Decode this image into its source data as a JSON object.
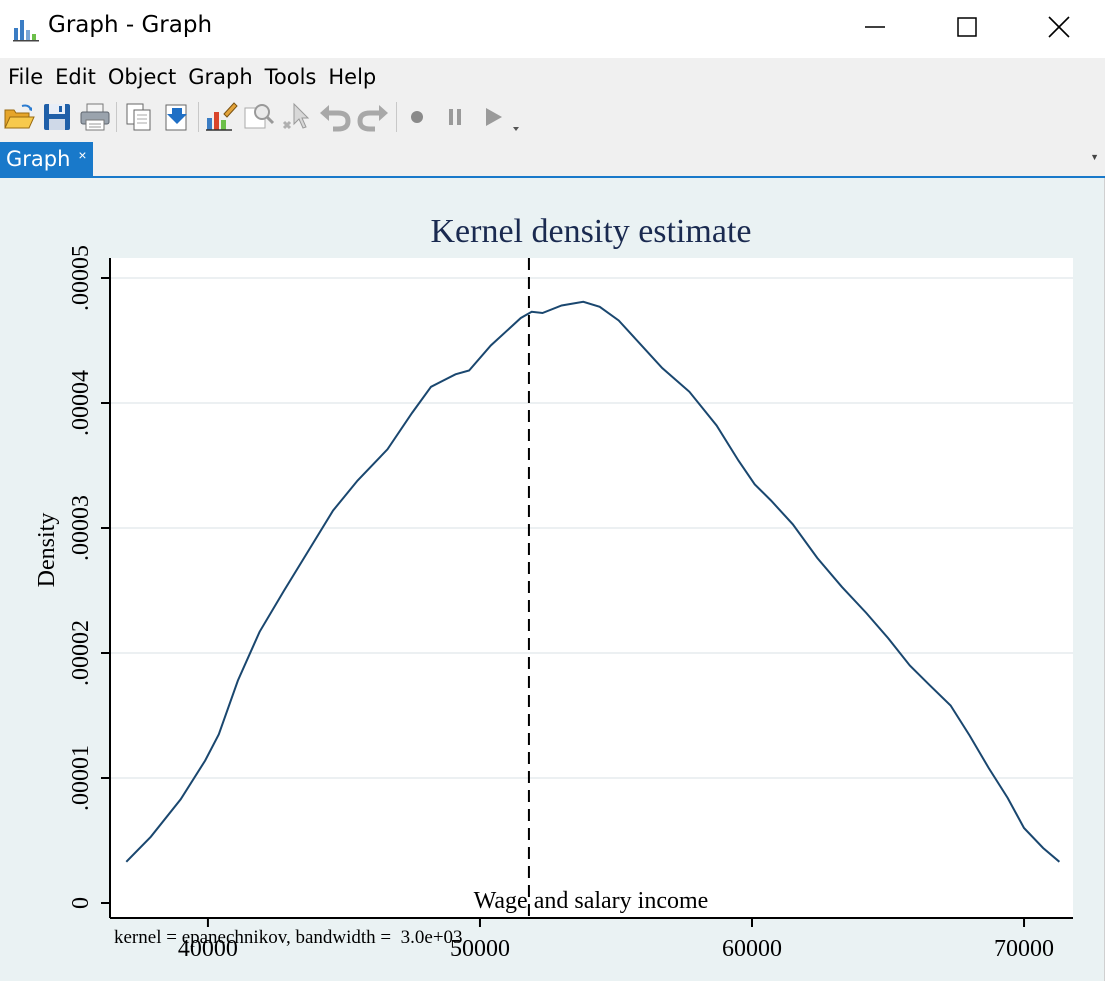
{
  "window": {
    "title": "Graph - Graph",
    "minimize_icon": "minimize-icon",
    "maximize_icon": "maximize-icon",
    "close_icon": "close-icon"
  },
  "menu": {
    "items": [
      "File",
      "Edit",
      "Object",
      "Graph",
      "Tools",
      "Help"
    ]
  },
  "toolbar": {
    "icons": [
      "open-icon",
      "save-icon",
      "print-icon",
      "copy-icon",
      "export-icon",
      "graph-editor-icon",
      "zoom-icon",
      "pointer-icon",
      "undo-icon",
      "redo-icon",
      "record-icon",
      "pause-icon",
      "play-icon"
    ]
  },
  "tabs": [
    {
      "label": "Graph",
      "close": "×",
      "active": true
    }
  ],
  "colors": {
    "accent": "#1979ca",
    "plot_region": "#ffffff",
    "graph_background": "#eaf2f3",
    "line": "#1a476f",
    "title_text": "#1a2a50"
  },
  "chart_data": {
    "type": "line",
    "title": "Kernel density estimate",
    "xlabel": "Wage and salary income",
    "ylabel": "Density",
    "note": "kernel = epanechnikov, bandwidth =  3.0e+03",
    "x_ticks": [
      40000,
      50000,
      60000,
      70000
    ],
    "x_tick_labels": [
      "40000",
      "50000",
      "60000",
      "70000"
    ],
    "y_ticks": [
      0,
      1e-05,
      2e-05,
      3e-05,
      4e-05,
      5e-05
    ],
    "y_tick_labels": [
      "0",
      ".00001",
      ".00002",
      ".00003",
      ".00004",
      ".00005"
    ],
    "xlim": [
      36400,
      71800
    ],
    "ylim": [
      -1.2e-06,
      5.16e-05
    ],
    "grid": true,
    "vline": {
      "x": 51800,
      "style": "dashed"
    },
    "series": [
      {
        "x": [
          37000,
          37900,
          39000,
          39900,
          40400,
          41100,
          41900,
          42800,
          43700,
          44600,
          45500,
          46600,
          47500,
          48200,
          49100,
          49600,
          50400,
          51500,
          51900,
          52300,
          53000,
          53800,
          54400,
          55100,
          55900,
          56700,
          57700,
          58700,
          59500,
          60100,
          60700,
          61500,
          62400,
          63300,
          64200,
          65000,
          65800,
          66500,
          67300,
          68000,
          68700,
          69400,
          70000,
          70700,
          71300
        ],
        "y": [
          3.3e-06,
          5.3e-06,
          8.3e-06,
          1.14e-05,
          1.35e-05,
          1.78e-05,
          2.17e-05,
          2.5e-05,
          2.82e-05,
          3.14e-05,
          3.38e-05,
          3.63e-05,
          3.92e-05,
          4.13e-05,
          4.23e-05,
          4.26e-05,
          4.46e-05,
          4.68e-05,
          4.73e-05,
          4.72e-05,
          4.78e-05,
          4.81e-05,
          4.77e-05,
          4.66e-05,
          4.47e-05,
          4.28e-05,
          4.09e-05,
          3.82e-05,
          3.54e-05,
          3.35e-05,
          3.22e-05,
          3.03e-05,
          2.76e-05,
          2.53e-05,
          2.32e-05,
          2.12e-05,
          1.9e-05,
          1.75e-05,
          1.58e-05,
          1.34e-05,
          1.08e-05,
          8.4e-06,
          6e-06,
          4.4e-06,
          3.3e-06
        ]
      }
    ]
  }
}
